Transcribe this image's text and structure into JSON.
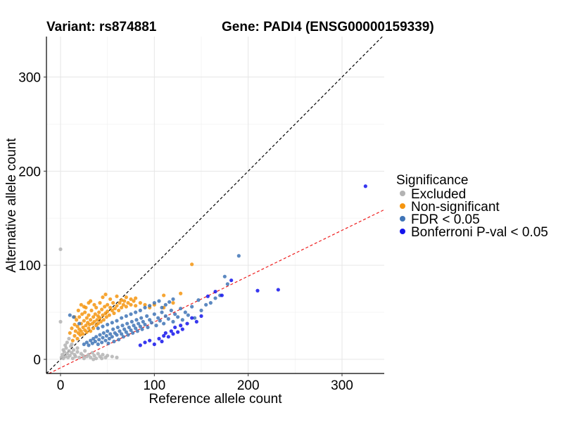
{
  "title_left": "Variant: rs874881",
  "title_right": "Gene: PADI4 (ENSG00000159339)",
  "chart_data": {
    "type": "scatter",
    "xlabel": "Reference allele count",
    "ylabel": "Alternative allele count",
    "xlim": [
      -15,
      345
    ],
    "ylim": [
      -15,
      343
    ],
    "x_ticks": [
      0,
      100,
      200,
      300
    ],
    "y_ticks": [
      0,
      100,
      200,
      300
    ],
    "x_tick_labels": [
      "0",
      "100",
      "200",
      "300"
    ],
    "y_tick_labels": [
      "0",
      "100",
      "200",
      "300"
    ],
    "grid": true,
    "reference_lines": [
      {
        "name": "identity",
        "slope": 1,
        "intercept": 0,
        "color": "#000000",
        "style": "dashed"
      },
      {
        "name": "fit",
        "slope": 0.487,
        "intercept": -9,
        "color": "#ee1c1c",
        "style": "dashed"
      }
    ],
    "legend": {
      "title": "Significance",
      "position": "right",
      "entries": [
        {
          "label": "Excluded",
          "color": "#b3b3b3"
        },
        {
          "label": "Non-significant",
          "color": "#f5950f"
        },
        {
          "label": "FDR < 0.05",
          "color": "#3f74b6"
        },
        {
          "label": "Bonferroni P-val < 0.05",
          "color": "#1414ec"
        }
      ]
    },
    "series": [
      {
        "name": "Excluded",
        "color": "#b3b3b3",
        "points": [
          [
            0,
            117
          ],
          [
            0,
            40
          ],
          [
            1,
            2
          ],
          [
            2,
            5
          ],
          [
            3,
            1
          ],
          [
            4,
            8
          ],
          [
            5,
            3
          ],
          [
            6,
            12
          ],
          [
            7,
            6
          ],
          [
            8,
            2
          ],
          [
            9,
            9
          ],
          [
            10,
            4
          ],
          [
            11,
            14
          ],
          [
            12,
            7
          ],
          [
            13,
            1
          ],
          [
            14,
            10
          ],
          [
            15,
            5
          ],
          [
            16,
            3
          ],
          [
            18,
            8
          ],
          [
            20,
            2
          ],
          [
            22,
            6
          ],
          [
            24,
            4
          ],
          [
            26,
            9
          ],
          [
            28,
            3
          ],
          [
            30,
            5
          ],
          [
            32,
            2
          ],
          [
            34,
            7
          ],
          [
            36,
            4
          ],
          [
            38,
            1
          ],
          [
            40,
            6
          ],
          [
            42,
            3
          ],
          [
            45,
            5
          ],
          [
            48,
            2
          ],
          [
            50,
            4
          ],
          [
            55,
            3
          ],
          [
            60,
            2
          ],
          [
            7,
            18
          ],
          [
            9,
            22
          ],
          [
            5,
            15
          ],
          [
            12,
            16
          ],
          [
            3,
            10
          ],
          [
            18,
            12
          ],
          [
            25,
            1
          ],
          [
            35,
            0
          ],
          [
            44,
            1
          ]
        ]
      },
      {
        "name": "Non-significant",
        "color": "#f5950f",
        "points": [
          [
            10,
            28
          ],
          [
            12,
            33
          ],
          [
            13,
            20
          ],
          [
            15,
            37
          ],
          [
            15,
            25
          ],
          [
            16,
            30
          ],
          [
            17,
            42
          ],
          [
            18,
            22
          ],
          [
            18,
            35
          ],
          [
            19,
            28
          ],
          [
            20,
            45
          ],
          [
            20,
            32
          ],
          [
            21,
            26
          ],
          [
            22,
            38
          ],
          [
            22,
            30
          ],
          [
            23,
            48
          ],
          [
            24,
            34
          ],
          [
            24,
            27
          ],
          [
            25,
            41
          ],
          [
            26,
            31
          ],
          [
            26,
            50
          ],
          [
            27,
            36
          ],
          [
            28,
            29
          ],
          [
            28,
            44
          ],
          [
            29,
            39
          ],
          [
            30,
            33
          ],
          [
            30,
            47
          ],
          [
            31,
            37
          ],
          [
            32,
            42
          ],
          [
            32,
            30
          ],
          [
            33,
            52
          ],
          [
            34,
            38
          ],
          [
            35,
            45
          ],
          [
            35,
            33
          ],
          [
            36,
            40
          ],
          [
            37,
            48
          ],
          [
            38,
            36
          ],
          [
            38,
            55
          ],
          [
            39,
            42
          ],
          [
            40,
            46
          ],
          [
            40,
            38
          ],
          [
            41,
            50
          ],
          [
            42,
            44
          ],
          [
            43,
            40
          ],
          [
            44,
            53
          ],
          [
            45,
            47
          ],
          [
            46,
            42
          ],
          [
            47,
            56
          ],
          [
            48,
            49
          ],
          [
            49,
            45
          ],
          [
            50,
            58
          ],
          [
            50,
            51
          ],
          [
            52,
            47
          ],
          [
            53,
            55
          ],
          [
            55,
            52
          ],
          [
            56,
            60
          ],
          [
            57,
            49
          ],
          [
            58,
            54
          ],
          [
            60,
            57
          ],
          [
            62,
            52
          ],
          [
            63,
            60
          ],
          [
            65,
            55
          ],
          [
            67,
            58
          ],
          [
            68,
            62
          ],
          [
            70,
            56
          ],
          [
            72,
            60
          ],
          [
            75,
            58
          ],
          [
            78,
            62
          ],
          [
            80,
            57
          ],
          [
            85,
            60
          ],
          [
            90,
            58
          ],
          [
            95,
            55
          ],
          [
            100,
            58
          ],
          [
            110,
            55
          ],
          [
            120,
            60
          ],
          [
            128,
            70
          ],
          [
            48,
            69
          ],
          [
            53,
            64
          ],
          [
            60,
            67
          ],
          [
            65,
            63
          ],
          [
            70,
            66
          ],
          [
            75,
            64
          ],
          [
            80,
            65
          ],
          [
            110,
            68
          ],
          [
            140,
            101
          ],
          [
            30,
            60
          ],
          [
            36,
            58
          ],
          [
            22,
            58
          ],
          [
            27,
            55
          ],
          [
            42,
            60
          ],
          [
            15,
            45
          ],
          [
            19,
            52
          ],
          [
            25,
            56
          ],
          [
            32,
            62
          ],
          [
            45,
            66
          ]
        ]
      },
      {
        "name": "FDR < 0.05",
        "color": "#3f74b6",
        "points": [
          [
            10,
            47
          ],
          [
            14,
            45
          ],
          [
            20,
            38
          ],
          [
            25,
            16
          ],
          [
            28,
            18
          ],
          [
            30,
            15
          ],
          [
            32,
            20
          ],
          [
            34,
            17
          ],
          [
            35,
            22
          ],
          [
            37,
            19
          ],
          [
            38,
            24
          ],
          [
            40,
            16
          ],
          [
            41,
            21
          ],
          [
            42,
            26
          ],
          [
            44,
            18
          ],
          [
            45,
            23
          ],
          [
            46,
            28
          ],
          [
            48,
            20
          ],
          [
            49,
            25
          ],
          [
            50,
            30
          ],
          [
            51,
            17
          ],
          [
            52,
            22
          ],
          [
            53,
            27
          ],
          [
            55,
            24
          ],
          [
            56,
            32
          ],
          [
            57,
            19
          ],
          [
            58,
            28
          ],
          [
            60,
            26
          ],
          [
            61,
            34
          ],
          [
            62,
            21
          ],
          [
            63,
            30
          ],
          [
            65,
            27
          ],
          [
            66,
            36
          ],
          [
            67,
            24
          ],
          [
            68,
            32
          ],
          [
            70,
            29
          ],
          [
            71,
            38
          ],
          [
            72,
            26
          ],
          [
            73,
            34
          ],
          [
            75,
            31
          ],
          [
            76,
            40
          ],
          [
            77,
            28
          ],
          [
            78,
            36
          ],
          [
            80,
            33
          ],
          [
            81,
            42
          ],
          [
            82,
            30
          ],
          [
            83,
            38
          ],
          [
            85,
            35
          ],
          [
            86,
            44
          ],
          [
            87,
            32
          ],
          [
            88,
            40
          ],
          [
            90,
            37
          ],
          [
            92,
            46
          ],
          [
            93,
            34
          ],
          [
            95,
            42
          ],
          [
            97,
            39
          ],
          [
            100,
            48
          ],
          [
            102,
            36
          ],
          [
            104,
            44
          ],
          [
            106,
            41
          ],
          [
            108,
            50
          ],
          [
            110,
            38
          ],
          [
            112,
            46
          ],
          [
            115,
            43
          ],
          [
            118,
            52
          ],
          [
            120,
            40
          ],
          [
            122,
            48
          ],
          [
            125,
            45
          ],
          [
            128,
            54
          ],
          [
            130,
            42
          ],
          [
            133,
            50
          ],
          [
            136,
            47
          ],
          [
            140,
            56
          ],
          [
            143,
            44
          ],
          [
            147,
            63
          ],
          [
            150,
            52
          ],
          [
            155,
            58
          ],
          [
            160,
            60
          ],
          [
            165,
            65
          ],
          [
            170,
            68
          ],
          [
            175,
            88
          ],
          [
            178,
            80
          ],
          [
            190,
            110
          ],
          [
            40,
            33
          ],
          [
            45,
            35
          ],
          [
            50,
            37
          ],
          [
            55,
            39
          ],
          [
            60,
            41
          ],
          [
            65,
            44
          ],
          [
            70,
            46
          ],
          [
            75,
            48
          ],
          [
            80,
            50
          ],
          [
            85,
            52
          ],
          [
            90,
            55
          ],
          [
            95,
            57
          ],
          [
            100,
            60
          ],
          [
            105,
            62
          ],
          [
            108,
            55
          ],
          [
            112,
            58
          ],
          [
            116,
            61
          ],
          [
            120,
            64
          ]
        ]
      },
      {
        "name": "Bonferroni P-val < 0.05",
        "color": "#1414ec",
        "points": [
          [
            85,
            15
          ],
          [
            90,
            18
          ],
          [
            95,
            20
          ],
          [
            100,
            16
          ],
          [
            105,
            22
          ],
          [
            108,
            19
          ],
          [
            110,
            25
          ],
          [
            112,
            28
          ],
          [
            115,
            24
          ],
          [
            118,
            30
          ],
          [
            120,
            27
          ],
          [
            122,
            34
          ],
          [
            125,
            29
          ],
          [
            128,
            36
          ],
          [
            130,
            32
          ],
          [
            135,
            38
          ],
          [
            140,
            44
          ],
          [
            145,
            40
          ],
          [
            150,
            46
          ],
          [
            157,
            67
          ],
          [
            165,
            72
          ],
          [
            172,
            68
          ],
          [
            182,
            84
          ],
          [
            210,
            73
          ],
          [
            232,
            74
          ],
          [
            325,
            184
          ]
        ]
      }
    ]
  }
}
